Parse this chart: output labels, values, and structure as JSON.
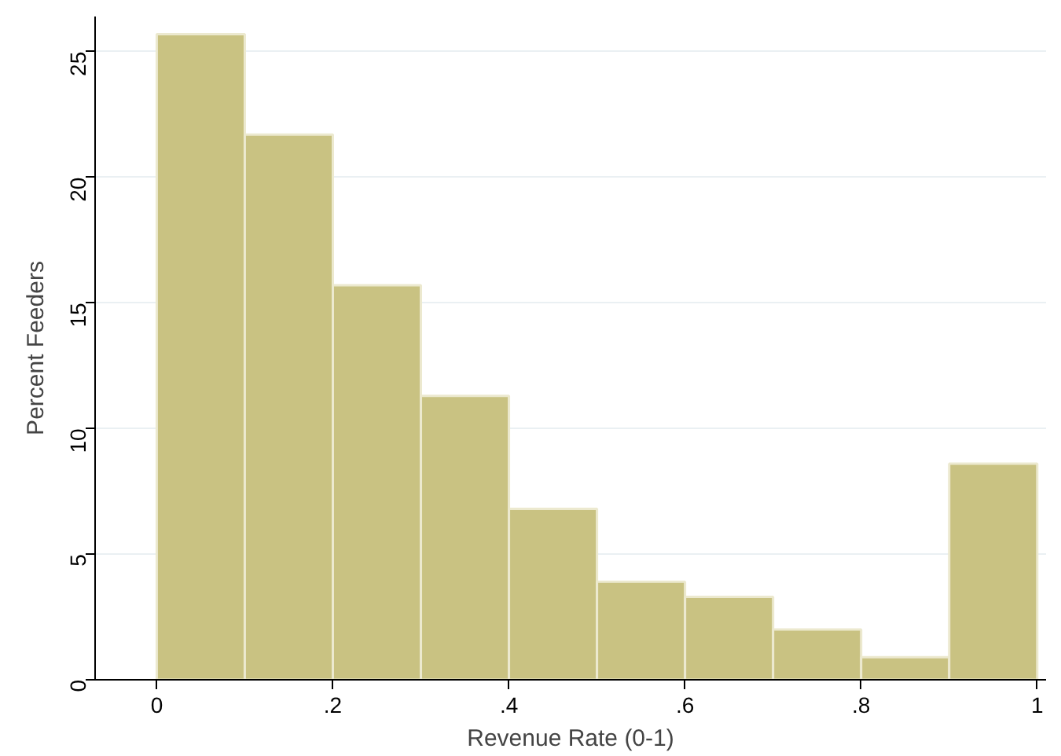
{
  "chart_data": {
    "type": "histogram",
    "xlabel": "Revenue Rate (0-1)",
    "ylabel": "Percent Feeders",
    "bins": [
      0,
      0.1,
      0.2,
      0.3,
      0.4,
      0.5,
      0.6,
      0.7,
      0.8,
      0.9,
      1.0
    ],
    "values": [
      25.7,
      21.7,
      15.7,
      11.3,
      6.8,
      3.9,
      3.3,
      2.0,
      0.9,
      8.6
    ],
    "color": "#c9c282",
    "xlim": [
      -0.07,
      1.01
    ],
    "ylim": [
      0,
      26.4
    ],
    "xticks": [
      {
        "value": 0,
        "label": "0"
      },
      {
        "value": 0.2,
        "label": ".2"
      },
      {
        "value": 0.4,
        "label": ".4"
      },
      {
        "value": 0.6,
        "label": ".6"
      },
      {
        "value": 0.8,
        "label": ".8"
      },
      {
        "value": 1,
        "label": "1"
      }
    ],
    "yticks": [
      0,
      5,
      10,
      15,
      20,
      25
    ],
    "grid": "y"
  }
}
